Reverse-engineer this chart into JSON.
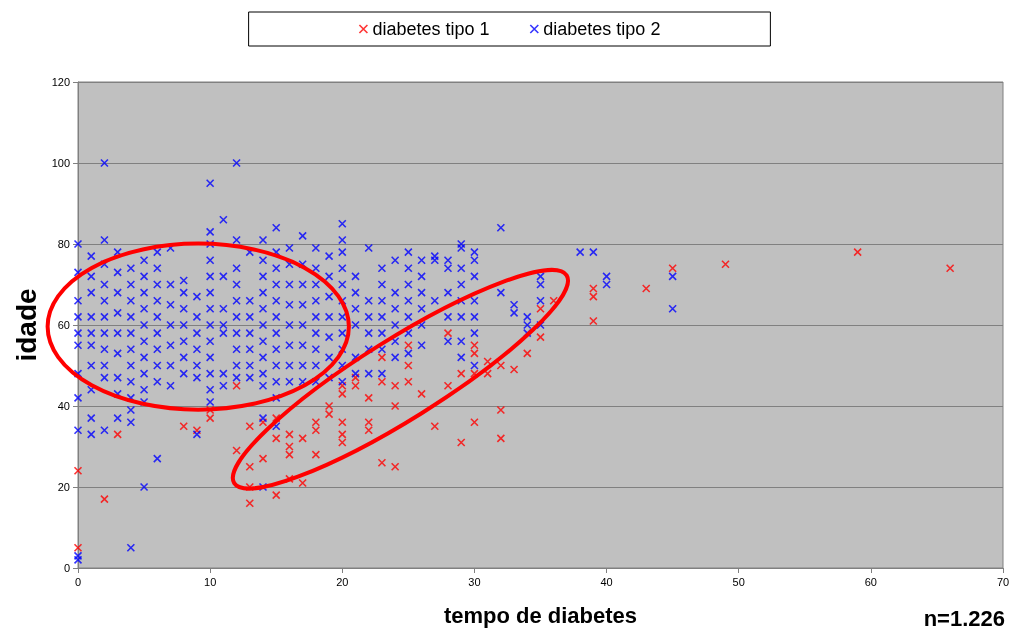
{
  "chart_data": {
    "type": "scatter",
    "xlabel": "tempo de diabetes",
    "ylabel": "idade",
    "xlim": [
      0,
      70
    ],
    "ylim": [
      0,
      120
    ],
    "xticks": [
      0,
      10,
      20,
      30,
      40,
      50,
      60,
      70
    ],
    "yticks": [
      0,
      20,
      40,
      60,
      80,
      100,
      120
    ],
    "grid": "y",
    "legend": "top",
    "marker": "cross",
    "annotations": [
      "n=1.226"
    ],
    "series": [
      {
        "name": "diabetes tipo 1",
        "color": "#ff0000",
        "x": [
          0,
          0,
          2,
          3,
          8,
          9,
          10,
          10,
          12,
          12,
          13,
          13,
          13,
          13,
          14,
          14,
          15,
          15,
          15,
          16,
          16,
          16,
          16,
          17,
          17,
          18,
          18,
          18,
          19,
          19,
          20,
          20,
          20,
          20,
          20,
          21,
          21,
          22,
          22,
          22,
          23,
          23,
          23,
          24,
          24,
          24,
          25,
          25,
          25,
          26,
          27,
          28,
          28,
          29,
          29,
          30,
          30,
          30,
          30,
          31,
          31,
          32,
          32,
          32,
          33,
          34,
          35,
          35,
          36,
          39,
          39,
          39,
          43,
          45,
          49,
          59,
          66
        ],
        "values": [
          24,
          5,
          17,
          33,
          35,
          34,
          37,
          39,
          29,
          45,
          25,
          20,
          16,
          35,
          36,
          27,
          37,
          32,
          18,
          30,
          28,
          33,
          22,
          32,
          21,
          34,
          36,
          28,
          40,
          38,
          45,
          43,
          36,
          33,
          31,
          47,
          45,
          42,
          36,
          34,
          52,
          46,
          26,
          40,
          45,
          25,
          55,
          50,
          46,
          43,
          35,
          58,
          45,
          48,
          31,
          55,
          48,
          36,
          53,
          51,
          48,
          50,
          39,
          32,
          49,
          53,
          57,
          64,
          66,
          69,
          67,
          61,
          69,
          74,
          75,
          78,
          74
        ]
      },
      {
        "name": "diabetes tipo 2",
        "color": "#0000ff",
        "x": [
          0,
          0,
          0,
          0,
          0,
          0,
          0,
          0,
          0,
          0,
          0,
          1,
          1,
          1,
          1,
          1,
          1,
          1,
          1,
          1,
          1,
          2,
          2,
          2,
          2,
          2,
          2,
          2,
          2,
          2,
          2,
          2,
          3,
          3,
          3,
          3,
          3,
          3,
          3,
          3,
          3,
          4,
          4,
          4,
          4,
          4,
          4,
          4,
          4,
          4,
          4,
          4,
          4,
          5,
          5,
          5,
          5,
          5,
          5,
          5,
          5,
          5,
          5,
          5,
          6,
          6,
          6,
          6,
          6,
          6,
          6,
          6,
          6,
          6,
          7,
          7,
          7,
          7,
          7,
          7,
          7,
          8,
          8,
          8,
          8,
          8,
          8,
          8,
          9,
          9,
          9,
          9,
          9,
          9,
          9,
          10,
          10,
          10,
          10,
          10,
          10,
          10,
          10,
          10,
          10,
          10,
          10,
          10,
          11,
          11,
          11,
          11,
          11,
          11,
          11,
          12,
          12,
          12,
          12,
          12,
          12,
          12,
          12,
          12,
          12,
          13,
          13,
          13,
          13,
          13,
          13,
          13,
          14,
          14,
          14,
          14,
          14,
          14,
          14,
          14,
          14,
          14,
          14,
          14,
          15,
          15,
          15,
          15,
          15,
          15,
          15,
          15,
          15,
          15,
          15,
          15,
          16,
          16,
          16,
          16,
          16,
          16,
          16,
          16,
          17,
          17,
          17,
          17,
          17,
          17,
          17,
          17,
          18,
          18,
          18,
          18,
          18,
          18,
          18,
          18,
          18,
          19,
          19,
          19,
          19,
          19,
          19,
          19,
          20,
          20,
          20,
          20,
          20,
          20,
          20,
          20,
          20,
          20,
          20,
          21,
          21,
          21,
          21,
          21,
          21,
          22,
          22,
          22,
          22,
          22,
          22,
          23,
          23,
          23,
          23,
          23,
          23,
          23,
          24,
          24,
          24,
          24,
          24,
          24,
          25,
          25,
          25,
          25,
          25,
          25,
          25,
          26,
          26,
          26,
          26,
          26,
          26,
          27,
          27,
          27,
          28,
          28,
          28,
          28,
          28,
          29,
          29,
          29,
          29,
          29,
          29,
          29,
          29,
          30,
          30,
          30,
          30,
          30,
          30,
          30,
          32,
          32,
          33,
          33,
          34,
          34,
          34,
          35,
          35,
          35,
          35,
          38,
          39,
          40,
          40,
          45,
          45
        ],
        "values": [
          80,
          73,
          66,
          62,
          58,
          55,
          48,
          42,
          34,
          3,
          2,
          77,
          72,
          68,
          62,
          58,
          55,
          50,
          44,
          37,
          33,
          100,
          81,
          75,
          70,
          66,
          62,
          58,
          54,
          50,
          47,
          34,
          78,
          73,
          68,
          63,
          58,
          53,
          47,
          43,
          37,
          74,
          70,
          66,
          62,
          58,
          54,
          50,
          46,
          42,
          39,
          36,
          5,
          76,
          72,
          68,
          64,
          60,
          56,
          52,
          48,
          44,
          41,
          20,
          78,
          74,
          70,
          66,
          62,
          58,
          54,
          50,
          46,
          27,
          79,
          70,
          65,
          60,
          55,
          50,
          45,
          71,
          68,
          64,
          60,
          56,
          52,
          48,
          67,
          62,
          58,
          54,
          50,
          47,
          33,
          95,
          83,
          80,
          76,
          72,
          68,
          64,
          60,
          56,
          52,
          48,
          44,
          41,
          86,
          72,
          64,
          60,
          58,
          48,
          45,
          100,
          81,
          74,
          70,
          66,
          62,
          58,
          54,
          50,
          47,
          78,
          66,
          62,
          58,
          54,
          50,
          47,
          81,
          76,
          72,
          68,
          64,
          60,
          56,
          52,
          48,
          45,
          37,
          20,
          84,
          78,
          74,
          70,
          66,
          62,
          58,
          54,
          50,
          46,
          42,
          35,
          79,
          75,
          70,
          65,
          60,
          55,
          50,
          46,
          82,
          75,
          70,
          65,
          60,
          55,
          50,
          46,
          79,
          74,
          70,
          66,
          62,
          58,
          54,
          50,
          46,
          77,
          72,
          67,
          62,
          57,
          52,
          47,
          85,
          81,
          78,
          74,
          70,
          66,
          62,
          58,
          54,
          50,
          46,
          72,
          68,
          64,
          60,
          52,
          48,
          79,
          66,
          62,
          58,
          54,
          48,
          74,
          70,
          66,
          62,
          58,
          54,
          48,
          76,
          68,
          64,
          60,
          56,
          52,
          78,
          74,
          70,
          66,
          62,
          58,
          53,
          76,
          72,
          68,
          64,
          60,
          55,
          77,
          76,
          66,
          76,
          74,
          68,
          62,
          56,
          80,
          79,
          74,
          70,
          66,
          62,
          56,
          52,
          78,
          76,
          72,
          66,
          62,
          58,
          50,
          84,
          68,
          65,
          63,
          62,
          60,
          58,
          72,
          70,
          66,
          60,
          78,
          78,
          72,
          70,
          72,
          64
        ]
      }
    ]
  }
}
